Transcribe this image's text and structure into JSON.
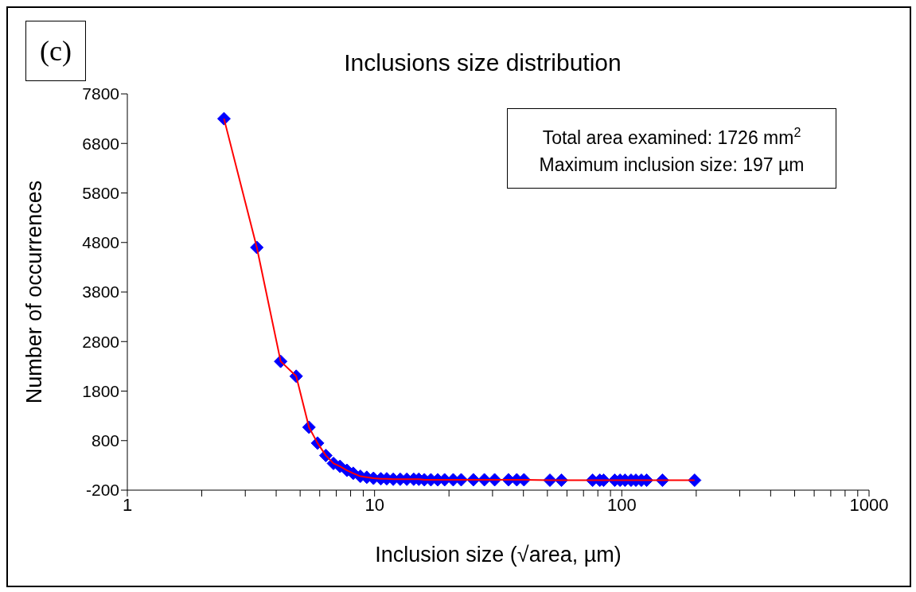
{
  "chart_data": {
    "type": "line",
    "title": "Inclusions size distribution",
    "xlabel": "Inclusion size (√area, µm)",
    "ylabel": "Number of occurrences",
    "annotations": [
      "(c)",
      "Total area examined: 1726 mm$^{2}$",
      "Maximum inclusion size: 197 µm"
    ],
    "x": [
      2.46,
      3.34,
      4.17,
      4.82,
      5.43,
      5.88,
      6.35,
      6.82,
      7.25,
      7.73,
      8.2,
      8.76,
      9.3,
      9.9,
      10.6,
      11.2,
      11.9,
      12.7,
      13.5,
      14.4,
      15.1,
      15.9,
      16.9,
      18.0,
      19.2,
      20.8,
      22.4,
      25.1,
      27.8,
      30.6,
      34.8,
      37.6,
      40.2,
      51.2,
      57.0,
      76.2,
      81.5,
      84.4,
      93.6,
      98.4,
      103,
      109,
      114,
      120,
      126,
      146,
      197
    ],
    "series": [
      {
        "color": "#ff0000",
        "colors": [
          "#0000ff",
          "#0000ff",
          "#0000ff",
          "#0000ff",
          "#0000ff",
          "#0000ff",
          "#0000ff",
          "#0000ff",
          "#0000ff",
          "#0000ff",
          "#0000ff",
          "#0000ff",
          "#0000ff",
          "#0000ff",
          "#0000ff",
          "#0000ff",
          "#0000ff",
          "#0000ff",
          "#0000ff",
          "#0000ff",
          "#0000ff",
          "#0000ff",
          "#0000ff",
          "#0000ff",
          "#0000ff",
          "#0000ff",
          "#0000ff",
          "#0000ff",
          "#0000ff",
          "#0000ff",
          "#0000ff",
          "#0000ff",
          "#0000ff",
          "#0000ff",
          "#0000ff",
          "#0000ff",
          "#0000ff",
          "#0000ff",
          "#0000ff",
          "#0000ff",
          "#0000ff",
          "#0000ff",
          "#0000ff",
          "#0000ff",
          "#0000ff",
          "#0000ff",
          "#0000ff"
        ],
        "values": [
          7300,
          4700,
          2400,
          2100,
          1070,
          750,
          500,
          340,
          280,
          200,
          140,
          80,
          60,
          40,
          30,
          30,
          20,
          20,
          20,
          20,
          20,
          10,
          10,
          10,
          10,
          10,
          10,
          10,
          10,
          10,
          10,
          10,
          10,
          0,
          0,
          0,
          0,
          0,
          0,
          0,
          0,
          0,
          0,
          0,
          0,
          0,
          0
        ]
      }
    ],
    "marker": "diamond",
    "line_style": "solid",
    "log": "x",
    "grid": false,
    "legend": false,
    "xlim": [
      1,
      1000
    ],
    "xticks": [
      1,
      {
        "value": 2,
        "label": null
      },
      {
        "value": 3,
        "label": null
      },
      {
        "value": 4,
        "label": null
      },
      {
        "value": 5,
        "label": null
      },
      {
        "value": 6,
        "label": null
      },
      {
        "value": 7,
        "label": null
      },
      {
        "value": 8,
        "label": null
      },
      {
        "value": 9,
        "label": null
      },
      10,
      {
        "value": 20,
        "label": null
      },
      {
        "value": 30,
        "label": null
      },
      {
        "value": 40,
        "label": null
      },
      {
        "value": 50,
        "label": null
      },
      {
        "value": 60,
        "label": null
      },
      {
        "value": 70,
        "label": null
      },
      {
        "value": 80,
        "label": null
      },
      {
        "value": 90,
        "label": null
      },
      100,
      {
        "value": 200,
        "label": null
      },
      {
        "value": 300,
        "label": null
      },
      {
        "value": 400,
        "label": null
      },
      {
        "value": 500,
        "label": null
      },
      {
        "value": 600,
        "label": null
      },
      {
        "value": 700,
        "label": null
      },
      {
        "value": 800,
        "label": null
      },
      {
        "value": 900,
        "label": null
      },
      1000
    ],
    "ylim": [
      -200,
      7800
    ],
    "yticks": [
      -200,
      800,
      1800,
      2800,
      3800,
      4800,
      5800,
      6800,
      7800
    ]
  }
}
